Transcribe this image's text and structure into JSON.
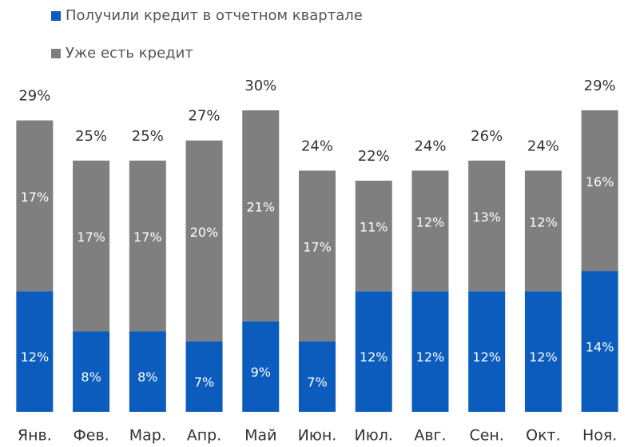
{
  "chart_data": {
    "type": "stacked_bar",
    "categories": [
      "Янв.",
      "Фев.",
      "Мар.",
      "Апр.",
      "Май",
      "Июн.",
      "Июл.",
      "Авг.",
      "Сен.",
      "Окт.",
      "Ноя."
    ],
    "series": [
      {
        "name": "Получили кредит в отчетном квартале",
        "color": "#0b5cbd",
        "values": [
          12,
          8,
          8,
          7,
          9,
          7,
          12,
          12,
          12,
          12,
          14
        ],
        "value_labels": [
          "12%",
          "8%",
          "8%",
          "7%",
          "9%",
          "7%",
          "12%",
          "12%",
          "12%",
          "12%",
          "14%"
        ]
      },
      {
        "name": "Уже есть кредит",
        "color": "#7f7f7f",
        "values": [
          17,
          17,
          17,
          20,
          21,
          17,
          11,
          12,
          13,
          12,
          16
        ],
        "value_labels": [
          "17%",
          "17%",
          "17%",
          "20%",
          "21%",
          "17%",
          "11%",
          "12%",
          "13%",
          "12%",
          "16%"
        ]
      }
    ],
    "total_labels": [
      "29%",
      "25%",
      "25%",
      "27%",
      "30%",
      "24%",
      "22%",
      "24%",
      "26%",
      "24%",
      "29%"
    ],
    "ylim": [
      0,
      30
    ]
  }
}
